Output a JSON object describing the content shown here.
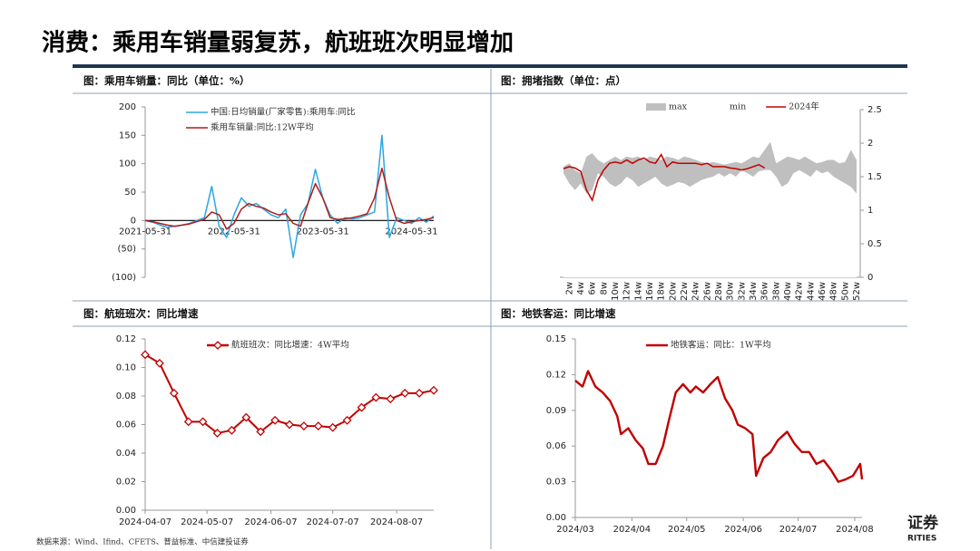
{
  "title": "消费：乘用车销量弱复苏，航班班次明显增加",
  "source": "数据来源：Wind、Ifind、CFETS、普益标准、中信建投证券",
  "logo_text": "证券",
  "logo_subtext": "RITIES",
  "chart_data": [
    {
      "type": "line",
      "title": "图：乘用车销量：同比（单位：%）",
      "categories": [
        "2021-05-31",
        null,
        null,
        null,
        null,
        null,
        null,
        null,
        null,
        null,
        null,
        null,
        "2022-05-31",
        null,
        null,
        null,
        null,
        null,
        null,
        null,
        null,
        null,
        null,
        null,
        "2023-05-31",
        null,
        null,
        null,
        null,
        null,
        null,
        null,
        null,
        null,
        null,
        null,
        "2024-05-31",
        null,
        null,
        null
      ],
      "series": [
        {
          "name": "中国:日均销量(厂家零售):乘用车:同比",
          "color": "#2aa7e0",
          "values": [
            0,
            -3,
            -8,
            -12,
            -10,
            -8,
            -5,
            0,
            5,
            60,
            -10,
            -30,
            10,
            40,
            25,
            30,
            20,
            10,
            5,
            20,
            -65,
            10,
            30,
            90,
            40,
            10,
            -5,
            5,
            3,
            5,
            10,
            15,
            150,
            -30,
            5,
            0,
            -5,
            5,
            -3,
            8
          ]
        },
        {
          "name": "乘用车销量:同比:12W平均",
          "color": "#b01c1c",
          "values": [
            0,
            -2,
            -5,
            -8,
            -10,
            -8,
            -6,
            -2,
            2,
            15,
            10,
            -15,
            -5,
            20,
            30,
            25,
            22,
            15,
            10,
            12,
            -5,
            -10,
            30,
            65,
            40,
            5,
            2,
            3,
            5,
            8,
            12,
            40,
            92,
            40,
            0,
            -5,
            -2,
            0,
            2,
            5
          ]
        }
      ],
      "ylim": [
        -100,
        200
      ],
      "yticks": [
        200,
        150,
        100,
        50,
        0,
        {
          "value": -50,
          "label": "(50)"
        },
        {
          "value": -100,
          "label": "(100)"
        }
      ],
      "negative_tick_color": "#c00000"
    },
    {
      "type": "area",
      "title": "图：拥堵指数（单位：点）",
      "categories": [
        null,
        "2w",
        null,
        "4w",
        null,
        "6w",
        null,
        "8w",
        null,
        "10w",
        null,
        "12w",
        null,
        "14w",
        null,
        "16w",
        null,
        "18w",
        null,
        "20w",
        null,
        "22w",
        null,
        "24w",
        null,
        "26w",
        null,
        "28w",
        null,
        "30w",
        null,
        "32w",
        null,
        "34w",
        null,
        "36w",
        null,
        "38w",
        null,
        "40w",
        null,
        "42w",
        null,
        "44w",
        null,
        "46w",
        null,
        "48w",
        null,
        "50w",
        null,
        "52w"
      ],
      "series": [
        {
          "name": "max",
          "color": "#bfbfbf",
          "values": [
            1.65,
            1.7,
            1.6,
            1.55,
            1.8,
            1.85,
            1.75,
            1.7,
            1.75,
            1.8,
            1.75,
            1.8,
            1.78,
            1.8,
            1.75,
            1.8,
            1.78,
            1.75,
            1.8,
            1.78,
            1.75,
            1.8,
            1.78,
            1.75,
            1.72,
            1.7,
            1.72,
            1.7,
            1.68,
            1.7,
            1.72,
            1.7,
            1.75,
            1.8,
            1.78,
            1.9,
            2.02,
            1.7,
            1.75,
            1.8,
            1.78,
            1.75,
            1.8,
            1.75,
            1.7,
            1.72,
            1.75,
            1.75,
            1.7,
            1.72,
            1.9,
            1.75
          ]
        },
        {
          "name": "min",
          "color": "#ffffff",
          "values": [
            1.55,
            1.4,
            1.3,
            1.4,
            1.25,
            1.3,
            1.55,
            1.5,
            1.4,
            1.35,
            1.4,
            1.5,
            1.45,
            1.35,
            1.4,
            1.45,
            1.5,
            1.4,
            1.35,
            1.38,
            1.42,
            1.4,
            1.35,
            1.4,
            1.45,
            1.48,
            1.5,
            1.55,
            1.5,
            1.55,
            1.5,
            1.6,
            1.55,
            1.5,
            1.58,
            1.6,
            1.6,
            1.5,
            1.35,
            1.4,
            1.55,
            1.6,
            1.55,
            1.5,
            1.6,
            1.55,
            1.58,
            1.5,
            1.45,
            1.4,
            1.35,
            1.25
          ]
        },
        {
          "name": "2024年",
          "color": "#c00000",
          "values": [
            1.62,
            1.65,
            1.63,
            1.58,
            1.3,
            1.15,
            1.45,
            1.6,
            1.7,
            1.72,
            1.7,
            1.75,
            1.7,
            1.75,
            1.78,
            1.72,
            1.7,
            1.83,
            1.65,
            1.72,
            1.7,
            1.7,
            1.7,
            1.7,
            1.68,
            1.7,
            1.65,
            1.65,
            1.65,
            1.63,
            1.62,
            1.6,
            1.62,
            1.65,
            1.68,
            1.63,
            null,
            null,
            null,
            null,
            null,
            null,
            null,
            null,
            null,
            null,
            null,
            null,
            null,
            null,
            null,
            null
          ]
        }
      ],
      "ylim": [
        0,
        2.5
      ],
      "yticks": [
        0,
        0.5,
        1,
        1.5,
        2,
        2.5
      ],
      "y_axis_position": "right"
    },
    {
      "type": "line",
      "title": "图：航班班次：同比增速",
      "x": [
        "2024-04-07",
        "2024-04-14",
        "2024-04-21",
        "2024-04-28",
        "2024-05-05",
        "2024-05-12",
        "2024-05-19",
        "2024-05-26",
        "2024-06-02",
        "2024-06-09",
        "2024-06-16",
        "2024-06-23",
        "2024-06-30",
        "2024-07-07",
        "2024-07-14",
        "2024-07-21",
        "2024-07-28",
        "2024-08-04",
        "2024-08-11",
        "2024-08-18",
        "2024-08-25"
      ],
      "series": [
        {
          "name": "航班班次：同比增速：4W平均",
          "color": "#c00000",
          "values": [
            0.109,
            0.103,
            0.082,
            0.062,
            0.062,
            0.054,
            0.056,
            0.065,
            0.055,
            0.063,
            0.06,
            0.059,
            0.059,
            0.058,
            0.063,
            0.072,
            0.079,
            0.078,
            0.082,
            0.082,
            0.084
          ]
        }
      ],
      "markers": "diamond",
      "xlim": [
        "2024-04-07",
        "2024-08-25"
      ],
      "xticks": [
        "2024-04-07",
        "2024-05-07",
        "2024-06-07",
        "2024-07-07",
        "2024-08-07"
      ],
      "ylim": [
        0,
        0.12
      ],
      "yticks": [
        {
          "value": 0,
          "label": "0.00"
        },
        0.02,
        0.04,
        0.06,
        0.08,
        {
          "value": 0.1,
          "label": "0.10"
        },
        0.12
      ]
    },
    {
      "type": "line",
      "title": "图：地铁客运：同比增速",
      "x": [
        "2024-03-01",
        "2024-03-05",
        "2024-03-08",
        "2024-03-12",
        "2024-03-16",
        "2024-03-20",
        "2024-03-24",
        "2024-03-26",
        "2024-03-30",
        "2024-04-03",
        "2024-04-07",
        "2024-04-10",
        "2024-04-14",
        "2024-04-18",
        "2024-04-21",
        "2024-04-25",
        "2024-04-29",
        "2024-05-03",
        "2024-05-06",
        "2024-05-10",
        "2024-05-14",
        "2024-05-18",
        "2024-05-22",
        "2024-05-26",
        "2024-05-29",
        "2024-06-02",
        "2024-06-06",
        "2024-06-08",
        "2024-06-12",
        "2024-06-16",
        "2024-06-20",
        "2024-06-25",
        "2024-06-29",
        "2024-07-03",
        "2024-07-07",
        "2024-07-11",
        "2024-07-15",
        "2024-07-19",
        "2024-07-23",
        "2024-07-27",
        "2024-07-31",
        "2024-08-02",
        "2024-08-04",
        "2024-08-05"
      ],
      "series": [
        {
          "name": "地铁客运：同比：1W平均",
          "color": "#c00000",
          "values": [
            0.115,
            0.11,
            0.123,
            0.11,
            0.105,
            0.098,
            0.085,
            0.07,
            0.075,
            0.065,
            0.058,
            0.045,
            0.045,
            0.06,
            0.08,
            0.105,
            0.112,
            0.105,
            0.11,
            0.105,
            0.112,
            0.118,
            0.1,
            0.09,
            0.078,
            0.075,
            0.07,
            0.035,
            0.05,
            0.055,
            0.065,
            0.072,
            0.062,
            0.055,
            0.055,
            0.045,
            0.048,
            0.04,
            0.03,
            0.032,
            0.035,
            0.04,
            0.045,
            0.032
          ]
        }
      ],
      "xlim": [
        "2024-03-01",
        "2024-08-05"
      ],
      "xticks": [
        {
          "value": "2024-03-01",
          "label": "2024/03"
        },
        {
          "value": "2024-04-01",
          "label": "2024/04"
        },
        {
          "value": "2024-05-01",
          "label": "2024/05"
        },
        {
          "value": "2024-06-01",
          "label": "2024/06"
        },
        {
          "value": "2024-07-01",
          "label": "2024/07"
        },
        {
          "value": "2024-08-01",
          "label": "2024/08"
        }
      ],
      "ylim": [
        0,
        0.15
      ],
      "yticks": [
        {
          "value": 0,
          "label": "0.00"
        },
        0.03,
        0.06,
        0.09,
        0.12,
        0.15
      ]
    }
  ]
}
